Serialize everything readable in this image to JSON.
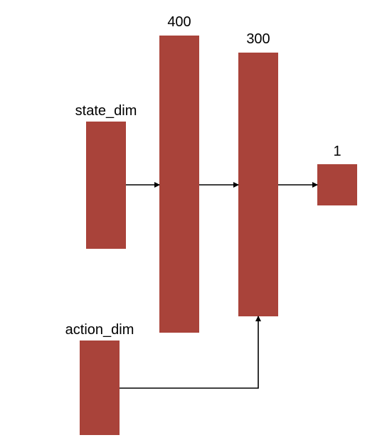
{
  "diagram": {
    "block_color": "#a9433a",
    "line_color": "#000000",
    "layers": [
      {
        "id": "state",
        "label": "state_dim"
      },
      {
        "id": "hidden1",
        "label": "400"
      },
      {
        "id": "hidden2",
        "label": "300"
      },
      {
        "id": "output",
        "label": "1"
      },
      {
        "id": "action",
        "label": "action_dim"
      }
    ],
    "connections": [
      {
        "from": "state_dim",
        "to": "400"
      },
      {
        "from": "400",
        "to": "300"
      },
      {
        "from": "300",
        "to": "1"
      },
      {
        "from": "action_dim",
        "to": "300"
      }
    ]
  }
}
